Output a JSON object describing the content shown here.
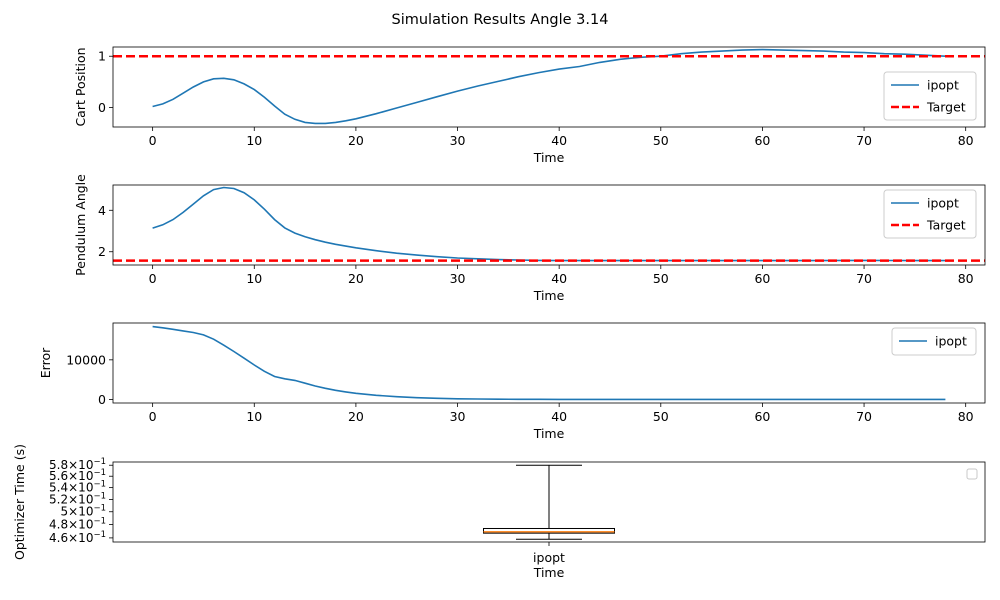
{
  "figure": {
    "title": "Simulation Results Angle 3.14"
  },
  "colors": {
    "series": "#1f77b4",
    "target": "#ff0000",
    "median": "#ff7f0e",
    "axis": "#000000"
  },
  "chart_data": [
    {
      "type": "line",
      "ylabel": "Cart Position",
      "xlabel": "Time",
      "xlim": [
        -3.9,
        81.9
      ],
      "ylim": [
        -0.38,
        1.18
      ],
      "xticks": [
        0,
        10,
        20,
        30,
        40,
        50,
        60,
        70,
        80
      ],
      "yticks": [
        0,
        1
      ],
      "legend": "right",
      "series": [
        {
          "name": "ipopt",
          "style": "solid",
          "x": [
            0,
            1,
            2,
            3,
            4,
            5,
            6,
            7,
            8,
            9,
            10,
            11,
            12,
            13,
            14,
            15,
            16,
            17,
            18,
            19,
            20,
            22,
            24,
            26,
            28,
            30,
            32,
            34,
            36,
            38,
            40,
            42,
            44,
            46,
            48,
            50,
            52,
            54,
            56,
            58,
            60,
            62,
            64,
            66,
            68,
            70,
            72,
            74,
            76,
            78
          ],
          "y": [
            0.02,
            0.07,
            0.16,
            0.28,
            0.4,
            0.5,
            0.56,
            0.57,
            0.54,
            0.46,
            0.35,
            0.2,
            0.03,
            -0.13,
            -0.23,
            -0.29,
            -0.31,
            -0.31,
            -0.29,
            -0.26,
            -0.22,
            -0.12,
            -0.01,
            0.1,
            0.21,
            0.32,
            0.42,
            0.51,
            0.6,
            0.68,
            0.75,
            0.8,
            0.88,
            0.94,
            0.98,
            1.0,
            1.05,
            1.08,
            1.1,
            1.12,
            1.13,
            1.12,
            1.11,
            1.1,
            1.08,
            1.07,
            1.05,
            1.04,
            1.02,
            1.0
          ]
        },
        {
          "name": "Target",
          "style": "dashed",
          "y": 1.0
        }
      ]
    },
    {
      "type": "line",
      "ylabel": "Pendulum Angle",
      "xlabel": "Time",
      "xlim": [
        -3.9,
        81.9
      ],
      "ylim": [
        1.36,
        5.22
      ],
      "xticks": [
        0,
        10,
        20,
        30,
        40,
        50,
        60,
        70,
        80
      ],
      "yticks": [
        2,
        4
      ],
      "legend": "top-right",
      "series": [
        {
          "name": "ipopt",
          "style": "solid",
          "x": [
            0,
            1,
            2,
            3,
            4,
            5,
            6,
            7,
            8,
            9,
            10,
            11,
            12,
            13,
            14,
            15,
            16,
            17,
            18,
            19,
            20,
            22,
            24,
            26,
            28,
            30,
            32,
            34,
            36,
            38,
            40,
            45,
            50,
            55,
            60,
            65,
            70,
            75,
            78
          ],
          "y": [
            3.14,
            3.3,
            3.55,
            3.9,
            4.3,
            4.7,
            5.0,
            5.1,
            5.05,
            4.85,
            4.5,
            4.05,
            3.55,
            3.15,
            2.9,
            2.72,
            2.58,
            2.46,
            2.36,
            2.27,
            2.19,
            2.05,
            1.93,
            1.84,
            1.76,
            1.7,
            1.66,
            1.62,
            1.6,
            1.58,
            1.57,
            1.57,
            1.57,
            1.57,
            1.57,
            1.57,
            1.58,
            1.57,
            1.57
          ]
        },
        {
          "name": "Target",
          "style": "dashed",
          "y": 1.5708
        }
      ]
    },
    {
      "type": "line",
      "ylabel": "Error",
      "xlabel": "Time",
      "xlim": [
        -3.9,
        81.9
      ],
      "ylim": [
        -900,
        19300
      ],
      "xticks": [
        0,
        10,
        20,
        30,
        40,
        50,
        60,
        70,
        80
      ],
      "yticks": [
        0,
        10000
      ],
      "legend": "top-right",
      "series": [
        {
          "name": "ipopt",
          "style": "solid",
          "x": [
            0,
            1,
            2,
            3,
            4,
            5,
            6,
            7,
            8,
            9,
            10,
            11,
            12,
            13,
            14,
            15,
            16,
            17,
            18,
            19,
            20,
            22,
            24,
            26,
            28,
            30,
            32,
            34,
            36,
            38,
            40,
            45,
            50,
            55,
            60,
            65,
            70,
            75,
            78
          ],
          "y": [
            18400,
            18100,
            17700,
            17300,
            16900,
            16300,
            15200,
            13700,
            12100,
            10400,
            8700,
            7100,
            5800,
            5200,
            4800,
            4100,
            3400,
            2800,
            2300,
            1900,
            1550,
            1050,
            700,
            450,
            280,
            170,
            110,
            70,
            45,
            30,
            20,
            10,
            5,
            3,
            2,
            1,
            1,
            0,
            0
          ]
        }
      ]
    },
    {
      "type": "box",
      "ylabel": "Optimizer Time (s)",
      "xlabel": "Time",
      "categories": [
        "ipopt"
      ],
      "ylim": [
        0.454,
        0.586
      ],
      "yscale": "log",
      "yticks": [
        {
          "value": 0.46,
          "mant": "4.6",
          "exp": "−1"
        },
        {
          "value": 0.48,
          "mant": "4.8",
          "exp": "−1"
        },
        {
          "value": 0.5,
          "mant": "5",
          "exp": "−1"
        },
        {
          "value": 0.52,
          "mant": "5.2",
          "exp": "−1"
        },
        {
          "value": 0.54,
          "mant": "5.4",
          "exp": "−1"
        },
        {
          "value": 0.56,
          "mant": "5.6",
          "exp": "−1"
        },
        {
          "value": 0.58,
          "mant": "5.8",
          "exp": "−1"
        }
      ],
      "box": {
        "whisker_low": 0.458,
        "q1": 0.467,
        "median": 0.469,
        "q3": 0.474,
        "whisker_high": 0.58
      },
      "legend": "top-right"
    }
  ]
}
